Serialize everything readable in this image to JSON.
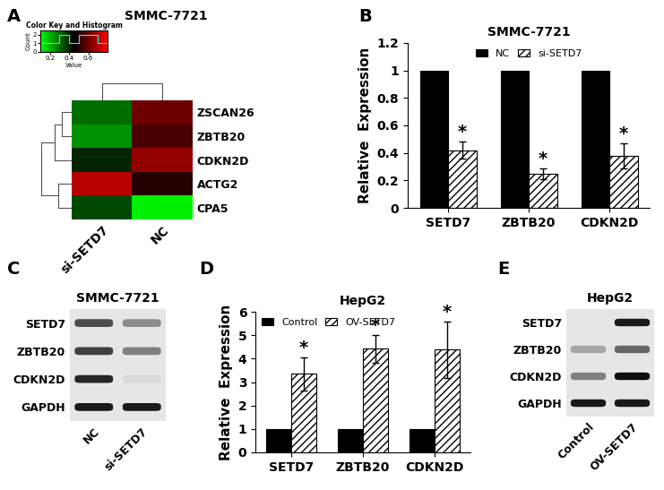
{
  "chart_data": [
    {
      "type": "heatmap",
      "panel": "A",
      "title": "SMMC-7721",
      "rows": [
        "ZSCAN26",
        "ZBTB20",
        "CDKN2D",
        "ACTG2",
        "CPA5"
      ],
      "columns": [
        "si-SETD7",
        "NC"
      ],
      "values": [
        [
          0.3,
          0.6
        ],
        [
          0.25,
          0.55
        ],
        [
          0.4,
          0.65
        ],
        [
          0.7,
          0.5
        ],
        [
          0.35,
          0.12
        ]
      ],
      "colors": [
        "#00ff00",
        "#000000",
        "#ff0000"
      ],
      "colorbar": {
        "title": "Color Key and Histogram",
        "label": "Value",
        "count_label": "Count",
        "range": [
          0.1,
          0.8
        ],
        "ticks": [
          0.2,
          0.4,
          0.6
        ],
        "count_lim": [
          0,
          2.5
        ],
        "count_ticks": [
          0,
          1,
          2
        ],
        "bins": [
          0.1,
          0.2,
          0.3,
          0.4,
          0.5,
          0.6,
          0.7,
          0.8
        ],
        "counts": [
          1,
          1,
          2,
          1,
          2,
          2,
          1
        ]
      }
    },
    {
      "type": "bar",
      "panel": "B",
      "title": "SMMC-7721",
      "y_label": "Relative  Expression",
      "categories": [
        "SETD7",
        "ZBTB20",
        "CDKN2D"
      ],
      "series": [
        {
          "name": "NC",
          "color": "#000000",
          "values": [
            1,
            1,
            1
          ]
        },
        {
          "name": "si-SETD7",
          "color": "#ffffff",
          "values": [
            0.42,
            0.25,
            0.38
          ],
          "errors": [
            0.06,
            0.04,
            0.09
          ],
          "annotations": [
            "*",
            "*",
            "*"
          ]
        }
      ],
      "ylim": [
        0,
        1.2
      ],
      "yticks": [
        0,
        0.2,
        0.4,
        0.6,
        0.8,
        1,
        1.2
      ],
      "legend": "upper center"
    },
    {
      "type": "blot",
      "panel": "C",
      "title": "SMMC-7721",
      "rows": [
        "SETD7",
        "ZBTB20",
        "CDKN2D",
        "GAPDH"
      ],
      "lanes": [
        "NC",
        "si-SETD7"
      ],
      "values": [
        [
          0.7,
          0.45
        ],
        [
          0.75,
          0.5
        ],
        [
          0.85,
          0.15
        ],
        [
          0.9,
          0.9
        ]
      ]
    },
    {
      "type": "bar",
      "panel": "D",
      "title": "HepG2",
      "y_label": "Relative  Expression",
      "categories": [
        "SETD7",
        "ZBTB20",
        "CDKN2D"
      ],
      "series": [
        {
          "name": "Control",
          "color": "#000000",
          "values": [
            1,
            1,
            1
          ]
        },
        {
          "name": "OV-SETD7",
          "color": "#ffffff",
          "values": [
            3.35,
            4.42,
            4.38
          ],
          "errors": [
            0.72,
            0.6,
            1.2
          ],
          "annotations": [
            "*",
            "*",
            "*"
          ]
        }
      ],
      "ylim": [
        0,
        6
      ],
      "yticks": [
        0,
        1,
        2,
        3,
        4,
        5,
        6
      ],
      "legend": "upper left"
    },
    {
      "type": "blot",
      "panel": "E",
      "title": "HepG2",
      "rows": [
        "SETD7",
        "ZBTB20",
        "CDKN2D",
        "GAPDH"
      ],
      "lanes": [
        "Control",
        "OV-SETD7"
      ],
      "values": [
        [
          0.1,
          0.9
        ],
        [
          0.35,
          0.6
        ],
        [
          0.5,
          0.95
        ],
        [
          0.9,
          0.9
        ]
      ]
    }
  ]
}
